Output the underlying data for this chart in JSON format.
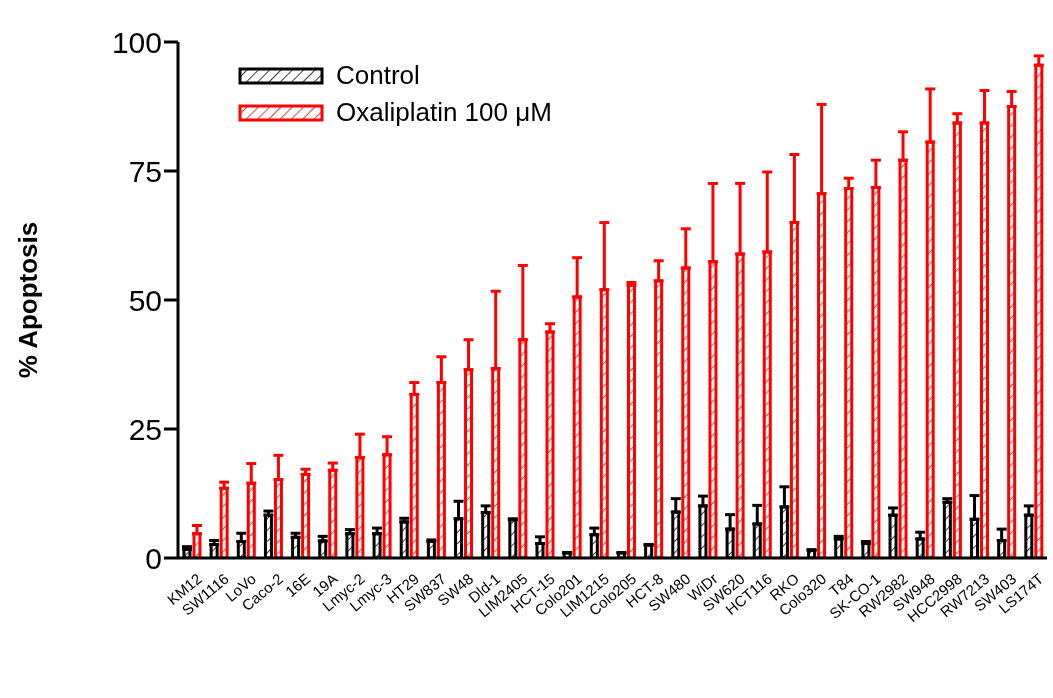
{
  "chart_data": {
    "type": "bar",
    "ylabel": "% Apoptosis",
    "categories": [
      "KM12",
      "SW1116",
      "LoVo",
      "Caco-2",
      "16E",
      "19A",
      "Lmyc-2",
      "Lmyc-3",
      "HT29",
      "SW837",
      "SW48",
      "Dld-1",
      "LIM2405",
      "HCT-15",
      "Colo201",
      "LIM1215",
      "Colo205",
      "HCT-8",
      "SW480",
      "WiDr",
      "SW620",
      "HCT116",
      "RKO",
      "Colo320",
      "T84",
      "SK-CO-1",
      "RW2982",
      "SW948",
      "HCC2998",
      "RW7213",
      "SW403",
      "LS174T"
    ],
    "series": [
      {
        "name": "Control",
        "color": "#000000",
        "values": [
          1.7,
          2.6,
          3.2,
          8.3,
          4,
          3.3,
          4.7,
          4.7,
          7,
          3.2,
          7.6,
          8.8,
          7.4,
          2.8,
          1,
          4.5,
          1,
          2.5,
          8.9,
          10.1,
          5.6,
          6.6,
          9.9,
          1.5,
          3.7,
          2.8,
          8.3,
          3.7,
          10.8,
          7.5,
          3.4,
          8.3
        ],
        "errors": [
          [
            1.7,
            2.2
          ],
          [
            2.6,
            3.4
          ],
          [
            3.2,
            4.8
          ],
          [
            8.3,
            9.1
          ],
          [
            4,
            4.8
          ],
          [
            3.3,
            4.2
          ],
          [
            4.7,
            5.5
          ],
          [
            4.7,
            5.8
          ],
          [
            7,
            7.7
          ],
          [
            3.2,
            3.5
          ],
          [
            7.6,
            11
          ],
          [
            8.8,
            10.1
          ],
          [
            7.4,
            7.6
          ],
          [
            2.8,
            4.1
          ],
          null,
          [
            4.5,
            5.8
          ],
          null,
          [
            2.5,
            2.6
          ],
          [
            8.9,
            11.5
          ],
          [
            10.1,
            12
          ],
          [
            5.6,
            8.4
          ],
          [
            6.6,
            10.2
          ],
          [
            9.9,
            13.8
          ],
          [
            1.5,
            1.6
          ],
          [
            3.7,
            4.2
          ],
          [
            2.8,
            3.2
          ],
          [
            8.3,
            9.7
          ],
          [
            3.7,
            5
          ],
          [
            10.8,
            11.5
          ],
          [
            7.5,
            12.1
          ],
          [
            3.4,
            5.6
          ],
          [
            8.3,
            10.1
          ]
        ]
      },
      {
        "name": "Oxaliplatin 100 μM",
        "color": "#ff0000",
        "values": [
          4.7,
          13.5,
          14.5,
          15.2,
          16.2,
          17,
          19.5,
          20,
          31.7,
          34,
          36.5,
          36.7,
          42.3,
          43.8,
          50.6,
          52,
          52.8,
          53.7,
          56.2,
          57.4,
          58.9,
          59.3,
          65,
          70.6,
          71.6,
          71.8,
          77.1,
          80.6,
          84.3,
          84.3,
          87.5,
          95.5
        ],
        "errors": [
          [
            4.7,
            6.3
          ],
          [
            13.5,
            14.7
          ],
          [
            14.5,
            18.3
          ],
          [
            15.2,
            19.9
          ],
          [
            16.2,
            17.2
          ],
          [
            17,
            18.4
          ],
          [
            19.5,
            24
          ],
          [
            20,
            23.5
          ],
          [
            31.7,
            34
          ],
          [
            34,
            39
          ],
          [
            36.5,
            42.3
          ],
          [
            36.7,
            51.7
          ],
          [
            42.3,
            56.7
          ],
          [
            43.8,
            45.4
          ],
          [
            50.6,
            58.2
          ],
          [
            52,
            65
          ],
          [
            52.8,
            53.4
          ],
          [
            53.7,
            57.6
          ],
          [
            56.2,
            63.8
          ],
          [
            57.4,
            72.6
          ],
          [
            58.9,
            72.6
          ],
          [
            59.3,
            74.8
          ],
          [
            65,
            78.2
          ],
          [
            70.6,
            87.9
          ],
          [
            71.6,
            73.6
          ],
          [
            71.8,
            77.1
          ],
          [
            77.1,
            82.6
          ],
          [
            80.6,
            90.9
          ],
          [
            84.3,
            86.1
          ],
          [
            84.3,
            90.6
          ],
          [
            87.5,
            90.4
          ],
          [
            95.5,
            97.3
          ]
        ]
      }
    ],
    "ylim": [
      0,
      100
    ],
    "yticks": [
      0,
      25,
      50,
      75,
      100
    ],
    "legend": "top left"
  }
}
